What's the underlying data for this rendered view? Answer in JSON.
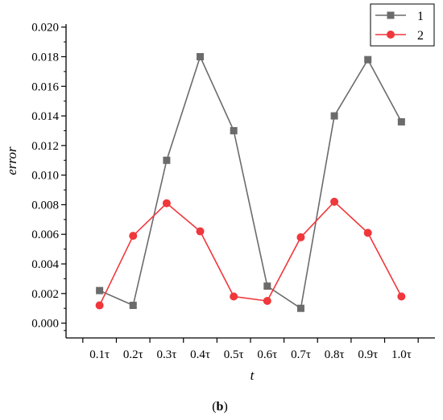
{
  "chart_data": {
    "type": "line",
    "title": "",
    "xlabel": "t",
    "ylabel": "error",
    "categories": [
      "0.1τ",
      "0.2τ",
      "0.3τ",
      "0.4τ",
      "0.5τ",
      "0.6τ",
      "0.7τ",
      "0.8τ",
      "0.9τ",
      "1.0τ"
    ],
    "ylim": [
      -0.001,
      0.0202
    ],
    "yticks": [
      "0.000",
      "0.002",
      "0.004",
      "0.006",
      "0.008",
      "0.010",
      "0.012",
      "0.014",
      "0.016",
      "0.018",
      "0.020"
    ],
    "grid": false,
    "legend_position": "top-right",
    "series": [
      {
        "name": "1",
        "color": "#6b6b6b",
        "marker": "square",
        "values": [
          0.0022,
          0.0012,
          0.011,
          0.018,
          0.013,
          0.0025,
          0.001,
          0.014,
          0.0178,
          0.0136
        ]
      },
      {
        "name": "2",
        "color": "#f0373b",
        "marker": "circle",
        "values": [
          0.0012,
          0.0059,
          0.0081,
          0.0062,
          0.0018,
          0.0015,
          0.0058,
          0.0082,
          0.0061,
          0.0018
        ]
      }
    ]
  },
  "caption": {
    "open": "(",
    "letter": "b",
    "close": ")"
  }
}
